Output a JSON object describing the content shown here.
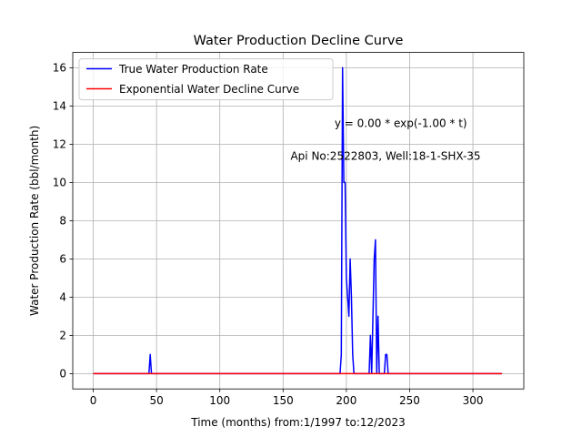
{
  "chart_data": {
    "type": "line",
    "title": "Water Production Decline Curve",
    "xlabel": "Time (months) from:1/1997 to:12/2023",
    "ylabel": "Water Production Rate (bbl/month)",
    "xlim": [
      -16.2,
      340.2
    ],
    "ylim": [
      -0.8,
      16.8
    ],
    "xticks": [
      0,
      50,
      100,
      150,
      200,
      250,
      300
    ],
    "yticks": [
      0,
      2,
      4,
      6,
      8,
      10,
      12,
      14,
      16
    ],
    "grid": true,
    "legend_position": "top-left",
    "annotations": [
      {
        "text": "y = 0.00 * exp(-1.00 * t)",
        "x": 243,
        "y": 13.1
      },
      {
        "text": "Api No:2522803, Well:18-1-SHX-35",
        "x": 231,
        "y": 11.4
      }
    ],
    "series": [
      {
        "name": "True Water Production Rate",
        "color": "#0000ff",
        "points": [
          [
            0,
            0
          ],
          [
            44,
            0
          ],
          [
            45,
            1
          ],
          [
            46,
            0
          ],
          [
            195,
            0
          ],
          [
            196,
            1
          ],
          [
            197,
            16
          ],
          [
            198,
            10
          ],
          [
            199,
            10
          ],
          [
            200,
            5
          ],
          [
            201,
            4
          ],
          [
            202,
            3
          ],
          [
            203,
            6
          ],
          [
            204,
            4
          ],
          [
            205,
            1
          ],
          [
            206,
            0
          ],
          [
            218,
            0
          ],
          [
            219,
            2
          ],
          [
            220,
            0
          ],
          [
            221,
            3
          ],
          [
            222,
            6
          ],
          [
            223,
            7
          ],
          [
            224,
            0
          ],
          [
            225,
            3
          ],
          [
            226,
            0
          ],
          [
            230,
            0
          ],
          [
            231,
            1
          ],
          [
            232,
            1
          ],
          [
            233,
            0
          ],
          [
            323,
            0
          ]
        ]
      },
      {
        "name": "Exponential Water Decline Curve",
        "color": "#ff0000",
        "points": [
          [
            0,
            0
          ],
          [
            323,
            0
          ]
        ]
      }
    ]
  }
}
